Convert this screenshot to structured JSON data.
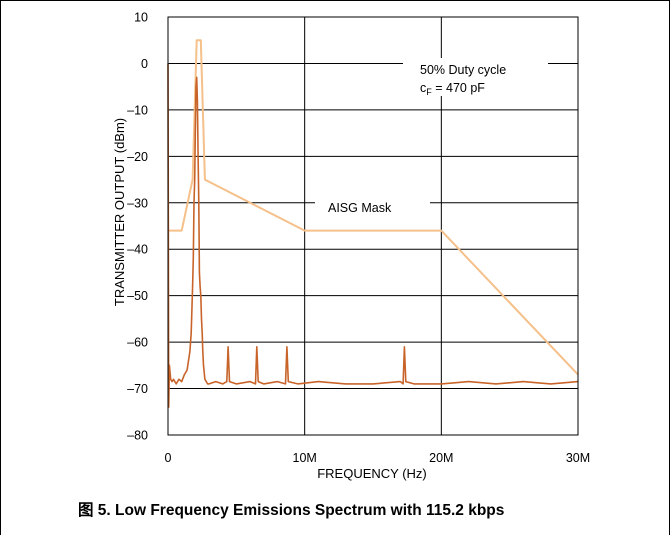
{
  "chart_data": {
    "type": "line",
    "caption": "图 5. Low Frequency Emissions Spectrum with 115.2 kbps",
    "xlabel": "FREQUENCY (Hz)",
    "ylabel": "TRANSMITTER OUTPUT (dBm)",
    "xlim": [
      0,
      30000000
    ],
    "ylim": [
      -80,
      10
    ],
    "grid": true,
    "x_ticks": [
      0,
      10000000,
      20000000,
      30000000
    ],
    "x_tick_labels": [
      "0",
      "10M",
      "20M",
      "30M"
    ],
    "y_ticks": [
      10,
      0,
      -10,
      -20,
      -30,
      -40,
      -50,
      -60,
      -70,
      -80
    ],
    "y_tick_labels": [
      "10",
      "0",
      "–10",
      "–20",
      "–30",
      "–40",
      "–50",
      "–60",
      "–70",
      "–80"
    ],
    "annotations": {
      "duty_cycle": "50% Duty cycle",
      "cf_main": "c",
      "cf_sub": "F",
      "cf_value": " = 470 pF",
      "mask_label": "AISG Mask"
    },
    "series": [
      {
        "name": "AISG Mask",
        "color": "#f5c08a",
        "x": [
          0,
          1000000,
          1800000,
          2100000,
          2400000,
          2700000,
          10000000,
          20000000,
          30000000
        ],
        "y": [
          -36,
          -36,
          -25,
          5,
          5,
          -25,
          -36,
          -36,
          -67
        ]
      },
      {
        "color": "#c8642a",
        "x": [
          0,
          50000,
          100000,
          200000,
          300000,
          400000,
          600000,
          800000,
          1000000,
          1200000,
          1400000,
          1600000,
          1700000,
          1800000,
          1850000,
          1900000,
          1950000,
          2000000,
          2050000,
          2100000,
          2150000,
          2200000,
          2250000,
          2300000,
          2350000,
          2400000,
          2450000,
          2500000,
          2550000,
          2600000,
          2700000,
          2800000,
          2900000,
          3000000,
          3500000,
          4000000,
          4300000,
          4400000,
          4500000,
          5000000,
          6000000,
          6400000,
          6500000,
          6600000,
          7000000,
          8000000,
          8600000,
          8700000,
          8800000,
          9500000,
          11000000,
          13000000,
          15000000,
          17000000,
          17200000,
          17300000,
          17400000,
          18000000,
          20000000,
          22000000,
          24000000,
          26000000,
          28000000,
          30000000
        ],
        "y": [
          0,
          -74,
          -65,
          -68,
          -68.5,
          -68,
          -69,
          -68,
          -68.5,
          -67,
          -66,
          -62,
          -58,
          -48,
          -42,
          -30,
          -25,
          -15,
          -5,
          -3,
          -8,
          -20,
          -30,
          -45,
          -48,
          -50,
          -55,
          -58,
          -62,
          -65,
          -68,
          -68.5,
          -69,
          -69,
          -68.5,
          -69,
          -68.5,
          -61,
          -68.5,
          -69,
          -68.5,
          -69,
          -61,
          -68.5,
          -69,
          -68.5,
          -69,
          -61,
          -68.5,
          -69,
          -68.5,
          -69,
          -69,
          -68.5,
          -69,
          -61,
          -68.5,
          -69,
          -69,
          -68.5,
          -69,
          -68.5,
          -69,
          -68.5
        ]
      }
    ]
  }
}
